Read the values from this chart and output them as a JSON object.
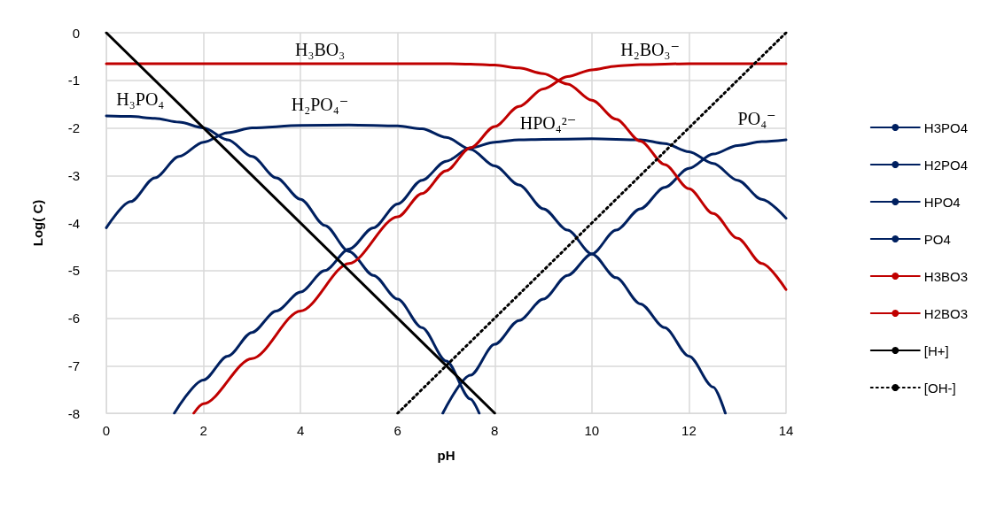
{
  "chart_data": {
    "type": "line",
    "xlabel": "pH",
    "ylabel": "Log( C)",
    "xlim": [
      0,
      14
    ],
    "xticks": [
      0,
      2,
      4,
      6,
      8,
      10,
      12,
      14
    ],
    "ylim": [
      -8,
      0
    ],
    "yticks": [
      -8,
      -7,
      -6,
      -5,
      -4,
      -3,
      -2,
      -1,
      0
    ],
    "grid": true,
    "legend": "right",
    "marker": "none",
    "series": [
      {
        "name": "H3PO4",
        "color": "#002060",
        "line_style": "solid",
        "x": [
          0,
          0.5,
          1,
          1.5,
          2,
          2.5,
          3,
          3.5,
          4,
          4.5,
          5,
          5.5,
          6,
          6.5,
          7,
          7.5,
          7.68
        ],
        "values": [
          -1.75,
          -1.76,
          -1.8,
          -1.88,
          -2.0,
          -2.25,
          -2.6,
          -3.05,
          -3.5,
          -4.05,
          -4.6,
          -5.1,
          -5.6,
          -6.2,
          -6.9,
          -7.7,
          -8
        ]
      },
      {
        "name": "H2PO4",
        "color": "#002060",
        "line_style": "solid",
        "x": [
          0,
          0.5,
          1,
          1.5,
          2,
          2.5,
          3,
          4,
          5,
          6,
          6.5,
          7,
          7.5,
          8,
          8.5,
          9,
          9.5,
          10,
          10.5,
          11,
          11.5,
          12,
          12.5,
          12.75
        ],
        "values": [
          -4.1,
          -3.55,
          -3.05,
          -2.6,
          -2.3,
          -2.1,
          -2.0,
          -1.95,
          -1.94,
          -1.96,
          -2.02,
          -2.2,
          -2.45,
          -2.8,
          -3.2,
          -3.7,
          -4.15,
          -4.65,
          -5.15,
          -5.7,
          -6.2,
          -6.8,
          -7.45,
          -8
        ]
      },
      {
        "name": "HPO4",
        "color": "#002060",
        "line_style": "solid",
        "x": [
          1.4,
          2,
          2.5,
          3,
          3.5,
          4,
          4.5,
          5,
          5.5,
          6,
          6.5,
          7,
          7.5,
          8,
          8.5,
          9,
          10,
          11,
          11.5,
          12,
          12.5,
          13,
          13.5,
          14
        ],
        "values": [
          -8,
          -7.3,
          -6.8,
          -6.3,
          -5.85,
          -5.45,
          -5.0,
          -4.55,
          -4.1,
          -3.6,
          -3.1,
          -2.7,
          -2.42,
          -2.3,
          -2.25,
          -2.24,
          -2.23,
          -2.25,
          -2.33,
          -2.5,
          -2.75,
          -3.1,
          -3.5,
          -3.9
        ]
      },
      {
        "name": "PO4",
        "color": "#002060",
        "line_style": "solid",
        "x": [
          6.93,
          7.5,
          8,
          8.5,
          9,
          9.5,
          10,
          10.5,
          11,
          11.5,
          12,
          12.5,
          13,
          13.5,
          14
        ],
        "values": [
          -8,
          -7.2,
          -6.55,
          -6.05,
          -5.6,
          -5.1,
          -4.65,
          -4.15,
          -3.7,
          -3.25,
          -2.85,
          -2.55,
          -2.37,
          -2.29,
          -2.25
        ]
      },
      {
        "name": "H3BO3",
        "color": "#c00000",
        "line_style": "solid",
        "x": [
          0,
          2,
          4,
          6,
          7,
          7.5,
          8,
          8.5,
          9,
          9.5,
          10,
          10.5,
          11,
          11.5,
          12,
          12.5,
          13,
          13.5,
          14
        ],
        "values": [
          -0.65,
          -0.65,
          -0.65,
          -0.65,
          -0.65,
          -0.66,
          -0.68,
          -0.74,
          -0.86,
          -1.08,
          -1.42,
          -1.82,
          -2.28,
          -2.77,
          -3.28,
          -3.8,
          -4.32,
          -4.85,
          -5.4
        ]
      },
      {
        "name": "H2BO3",
        "color": "#c00000",
        "line_style": "solid",
        "x": [
          1.8,
          2,
          3,
          4,
          5,
          6,
          6.5,
          7,
          7.5,
          8,
          8.5,
          9,
          9.5,
          10,
          10.5,
          11,
          12,
          14
        ],
        "values": [
          -8,
          -7.8,
          -6.85,
          -5.85,
          -4.85,
          -3.87,
          -3.38,
          -2.9,
          -2.42,
          -1.97,
          -1.55,
          -1.18,
          -0.92,
          -0.78,
          -0.7,
          -0.67,
          -0.65,
          -0.65
        ]
      },
      {
        "name": "[H+]",
        "color": "#000000",
        "line_style": "solid",
        "x": [
          0,
          8
        ],
        "values": [
          0,
          -8
        ]
      },
      {
        "name": "[OH-]",
        "color": "#000000",
        "line_style": "dotted",
        "x": [
          6,
          14
        ],
        "values": [
          -8,
          0
        ]
      }
    ],
    "annotations": [
      "H₃PO₄",
      "H₃BO₃",
      "H₂PO₄⁻",
      "H₂BO₃⁻",
      "HPO₄²⁻",
      "PO₄⁻"
    ]
  }
}
